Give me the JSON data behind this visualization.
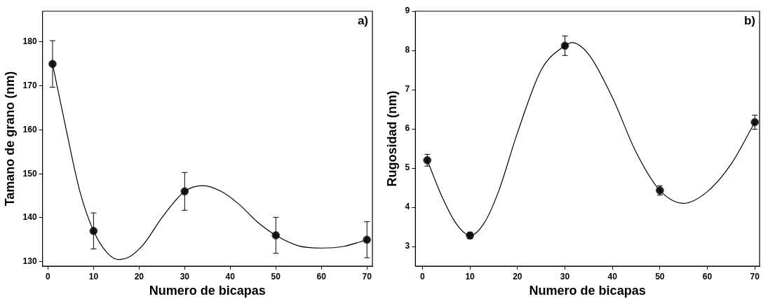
{
  "chart_data": [
    {
      "type": "scatter",
      "xlabel": "Numero de bicapas",
      "ylabel": "Tamano de grano (nm)",
      "annotations": [
        "a)"
      ],
      "xlim": [
        -1.2,
        71.2
      ],
      "ylim": [
        129,
        187
      ],
      "xticks": [
        0,
        10,
        20,
        30,
        40,
        50,
        60,
        70
      ],
      "yticks": [
        130,
        140,
        150,
        160,
        170,
        180
      ],
      "grid": false,
      "legend": false,
      "series": [
        {
          "type": "line",
          "color": "#000000",
          "x": [
            1,
            4,
            7,
            10,
            13,
            15.5,
            18,
            21,
            25,
            30,
            34,
            38,
            42,
            46,
            50,
            55,
            60,
            65,
            70
          ],
          "values": [
            175,
            160,
            146,
            137,
            132,
            130.5,
            131.2,
            134,
            140,
            146,
            147.3,
            146,
            143,
            139,
            136,
            133.6,
            133.1,
            133.5,
            135
          ]
        },
        {
          "type": "scatter",
          "color": "#1a1a1a",
          "marker": "circle",
          "x": [
            1,
            10,
            30,
            50,
            70
          ],
          "values": [
            175,
            137,
            146,
            136,
            135
          ],
          "errors": [
            5.3,
            4.1,
            4.3,
            4.1,
            4.1
          ]
        }
      ]
    },
    {
      "type": "scatter",
      "xlabel": "Numero de bicapas",
      "ylabel": "Rugosidad (nm)",
      "annotations": [
        "b)"
      ],
      "xlim": [
        -1.5,
        71
      ],
      "ylim": [
        2.5,
        9
      ],
      "xticks": [
        0,
        10,
        20,
        30,
        40,
        50,
        60,
        70
      ],
      "yticks": [
        3,
        4,
        5,
        6,
        7,
        8,
        9
      ],
      "grid": false,
      "legend": false,
      "series": [
        {
          "type": "line",
          "color": "#000000",
          "x": [
            1,
            4,
            7,
            10,
            13,
            16,
            20,
            25,
            30,
            31.5,
            35,
            40,
            45,
            50,
            55,
            60,
            65,
            70
          ],
          "values": [
            5.2,
            4.3,
            3.6,
            3.28,
            3.6,
            4.4,
            5.9,
            7.5,
            8.12,
            8.2,
            7.9,
            6.8,
            5.4,
            4.43,
            4.1,
            4.4,
            5.1,
            6.17
          ]
        },
        {
          "type": "scatter",
          "color": "#1a1a1a",
          "marker": "circle",
          "x": [
            1,
            10,
            30,
            50,
            70
          ],
          "values": [
            5.2,
            3.28,
            8.12,
            4.43,
            6.17
          ],
          "errors": [
            0.15,
            0.08,
            0.25,
            0.12,
            0.18
          ]
        }
      ]
    }
  ]
}
